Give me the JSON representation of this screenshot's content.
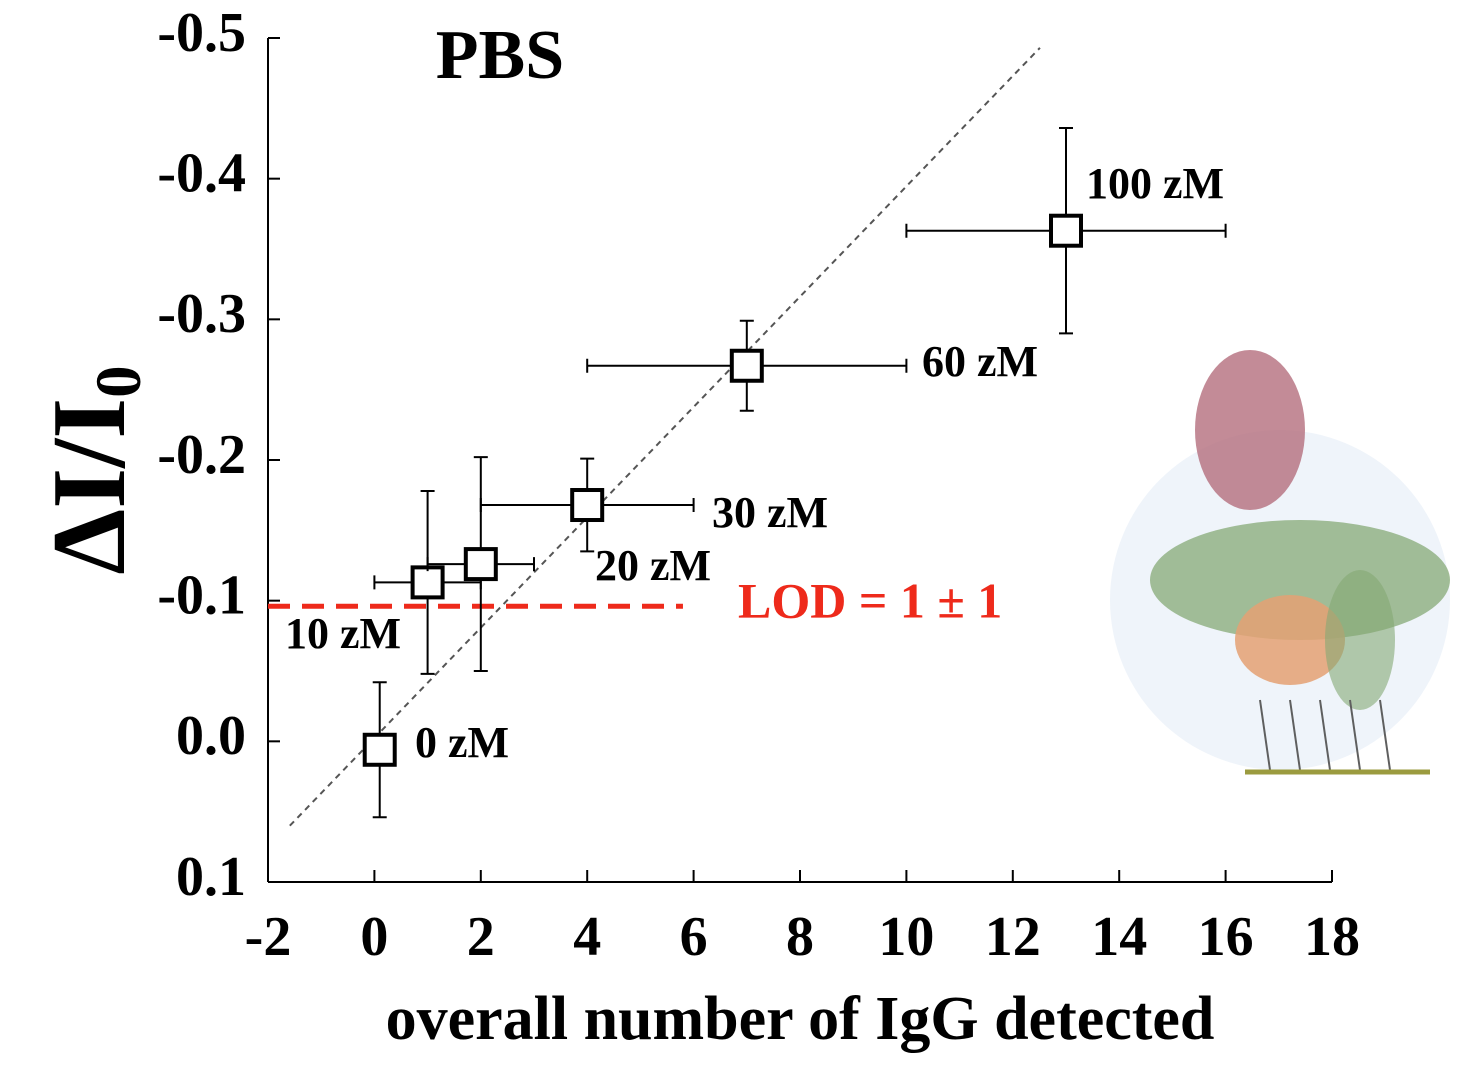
{
  "chart_data": {
    "type": "scatter",
    "title": "PBS",
    "title_color": "#ff0000",
    "x_label": "overall number of IgG detected",
    "y_label": "ΔI/I",
    "y_label_subscript": "0",
    "xlim": [
      -2,
      18
    ],
    "xticks": [
      -2,
      0,
      2,
      4,
      6,
      8,
      10,
      12,
      14,
      16,
      18
    ],
    "ylim": [
      0.1,
      -0.5
    ],
    "yticks": [
      0.1,
      {
        "value": 0,
        "label": "0.0"
      },
      -0.1,
      -0.2,
      -0.3,
      -0.4,
      -0.5
    ],
    "series": [
      {
        "color": "#000000",
        "x": [
          0.1,
          1,
          2,
          4,
          7,
          13
        ],
        "values": [
          0.006,
          -0.113,
          -0.126,
          -0.168,
          -0.267,
          -0.363
        ],
        "xerr": [
          0,
          1,
          1,
          2,
          3,
          3
        ],
        "yerr": [
          0.048,
          0.065,
          0.076,
          0.033,
          0.032,
          0.073
        ],
        "labels": [
          "0 zM",
          "10 zM",
          "20 zM",
          "30 zM",
          "60 zM",
          "100 zM"
        ]
      }
    ],
    "fit": {
      "x": [
        -1.59,
        12.51
      ],
      "values": [
        0.06,
        -0.493
      ],
      "color": "#555555"
    },
    "lod": {
      "x": [
        -2,
        5.8
      ],
      "values": [
        -0.096,
        -0.096
      ],
      "label": "LOD = 1 ± 1",
      "color": "#ee2a1b"
    }
  }
}
